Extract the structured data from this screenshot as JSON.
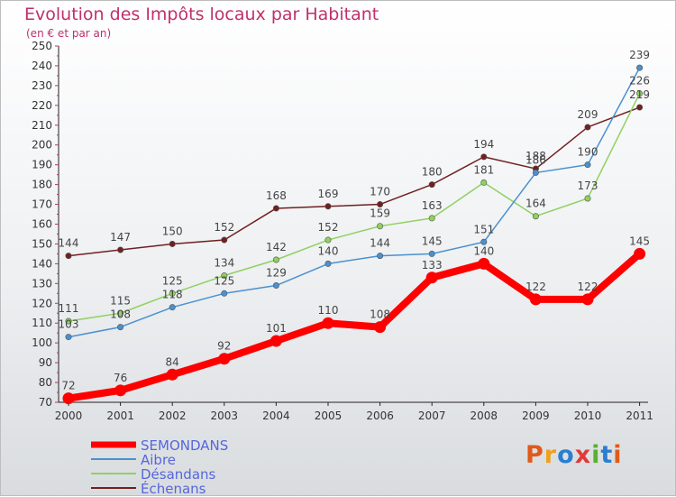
{
  "header": {
    "title": "Evolution des Impôts locaux par Habitant",
    "subtitle": "(en € et par an)"
  },
  "logo": {
    "text": "Proxiti",
    "colors": [
      "#e05a1a",
      "#f0a020",
      "#2a7fd0",
      "#e03a3a",
      "#5ab030",
      "#2a7fd0",
      "#e05a1a"
    ]
  },
  "chart_data": {
    "type": "line",
    "title": "Evolution des Impôts locaux par Habitant",
    "subtitle": "(en € et par an)",
    "xlabel": "",
    "ylabel": "",
    "ylim": [
      70,
      250
    ],
    "ytick_step": 10,
    "grid": false,
    "legend_position": "bottom-left",
    "x": [
      "2000",
      "2001",
      "2002",
      "2003",
      "2004",
      "2005",
      "2006",
      "2007",
      "2008",
      "2009",
      "2010",
      "2011"
    ],
    "series": [
      {
        "name": "SEMONDANS",
        "color": "#ff0000",
        "emphasis": true,
        "values": [
          72,
          76,
          84,
          92,
          101,
          110,
          108,
          133,
          140,
          122,
          122,
          145
        ]
      },
      {
        "name": "Aibre",
        "color": "#4a90d0",
        "emphasis": false,
        "values": [
          103,
          108,
          118,
          125,
          129,
          140,
          144,
          145,
          151,
          186,
          190,
          239
        ]
      },
      {
        "name": "Désandans",
        "color": "#90d060",
        "emphasis": false,
        "values": [
          111,
          115,
          125,
          134,
          142,
          152,
          159,
          163,
          181,
          164,
          173,
          226
        ]
      },
      {
        "name": "Échenans",
        "color": "#702020",
        "emphasis": false,
        "values": [
          144,
          147,
          150,
          152,
          168,
          169,
          170,
          180,
          194,
          188,
          209,
          219
        ]
      }
    ],
    "point_labels": [
      [
        "72",
        "76",
        "84",
        "92",
        "101",
        "110",
        "108",
        "133",
        "140",
        "122",
        "122",
        "145"
      ],
      [
        "103",
        "108",
        "118",
        "125",
        "129",
        "140",
        "144",
        "145",
        "151",
        "186",
        "190",
        "239"
      ],
      [
        "111",
        "115",
        "125",
        "134",
        "142",
        "152",
        "159",
        "163",
        "181",
        "164",
        "173",
        "226"
      ],
      [
        "144",
        "147",
        "150",
        "152",
        "168",
        "169",
        "170",
        "180",
        "194",
        "188",
        "209",
        "219"
      ]
    ]
  }
}
